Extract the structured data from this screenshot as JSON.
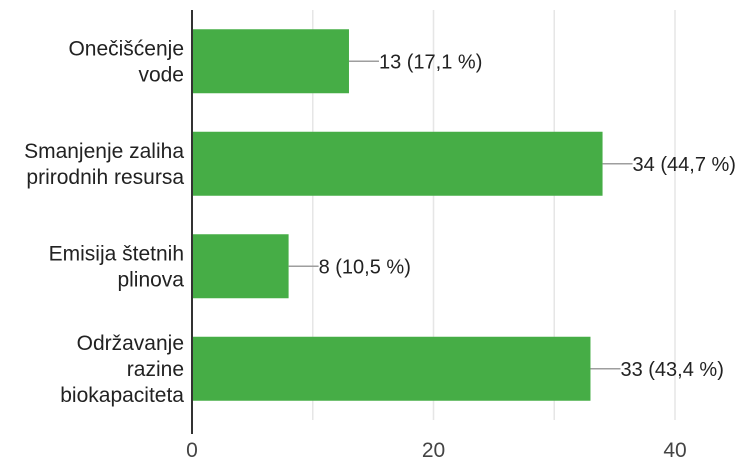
{
  "chart_data": {
    "type": "bar",
    "orientation": "horizontal",
    "categories": [
      [
        "Onečišćenje",
        "vode"
      ],
      [
        "Smanjenje zaliha",
        "prirodnih resursa"
      ],
      [
        "Emisija štetnih",
        "plinova"
      ],
      [
        "Održavanje",
        "razine",
        "biokapaciteta"
      ]
    ],
    "values": [
      13,
      34,
      8,
      33
    ],
    "data_labels": [
      "13 (17,1 %)",
      "34 (44,7 %)",
      "8 (10,5 %)",
      "33 (43,4 %)"
    ],
    "xlim": [
      0,
      40
    ],
    "x_ticks": [
      0,
      20,
      40
    ],
    "x_tick_labels": [
      "0",
      "20",
      "40"
    ],
    "grid": true,
    "legend": "none",
    "colors": {
      "bar": "#46ad46",
      "grid": "#e6e6e6",
      "axis": "#333333",
      "leader": "#9e9e9e"
    }
  }
}
